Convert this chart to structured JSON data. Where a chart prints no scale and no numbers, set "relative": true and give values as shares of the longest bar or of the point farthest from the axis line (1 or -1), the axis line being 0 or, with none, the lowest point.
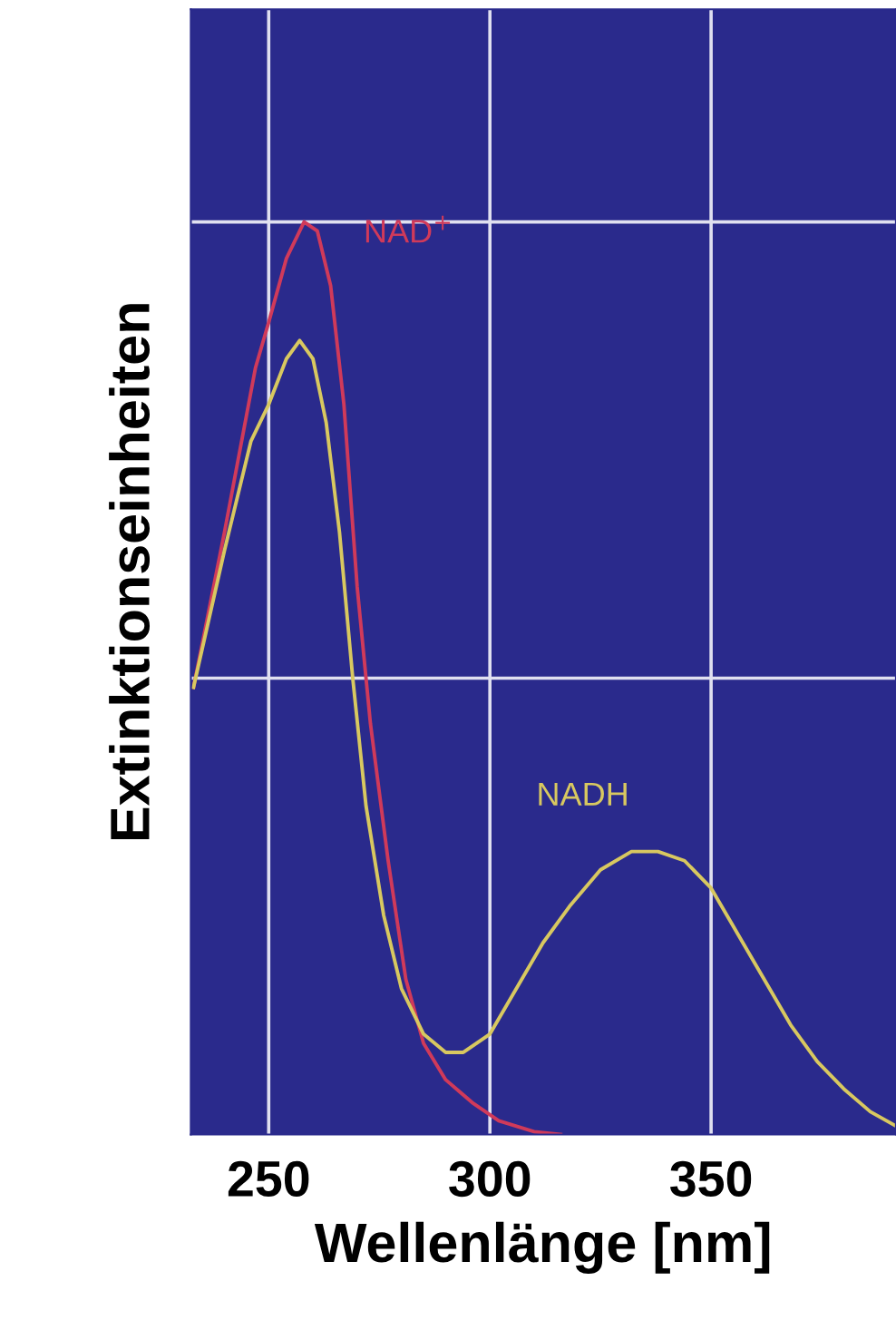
{
  "chart_data": {
    "type": "line",
    "relative": true,
    "xlabel": "Wellenlänge [nm]",
    "ylabel": "Extinktionseinheiten",
    "xlim": [
      232.4,
      391.8
    ],
    "xticks": [
      250,
      300,
      350
    ],
    "grid": true,
    "legend": false,
    "marker": "none",
    "line_style": "solid",
    "series": [
      {
        "name": "NAD$^{+}$",
        "color": "#d03a5a",
        "x": [
          233,
          240,
          247,
          250,
          254,
          258,
          261,
          264,
          267,
          270,
          273,
          277,
          281,
          285,
          290,
          296,
          302,
          310,
          316
        ],
        "values": [
          0.49,
          0.66,
          0.84,
          0.89,
          0.96,
          1.0,
          0.99,
          0.93,
          0.8,
          0.6,
          0.45,
          0.3,
          0.17,
          0.1,
          0.06,
          0.035,
          0.015,
          0.003,
          0
        ]
      },
      {
        "name": "NADH",
        "color": "#d8c860",
        "x": [
          233,
          240,
          246,
          250,
          254,
          257,
          260,
          263,
          266,
          269,
          272,
          276,
          280,
          285,
          290,
          294,
          300,
          306,
          312,
          318,
          325,
          332,
          338,
          344,
          350,
          356,
          362,
          368,
          374,
          380,
          386,
          391.5
        ],
        "values": [
          0.49,
          0.64,
          0.76,
          0.8,
          0.85,
          0.87,
          0.85,
          0.78,
          0.66,
          0.5,
          0.36,
          0.24,
          0.16,
          0.11,
          0.09,
          0.09,
          0.11,
          0.16,
          0.21,
          0.25,
          0.29,
          0.31,
          0.31,
          0.3,
          0.27,
          0.22,
          0.17,
          0.12,
          0.08,
          0.05,
          0.025,
          0.01
        ]
      }
    ]
  }
}
